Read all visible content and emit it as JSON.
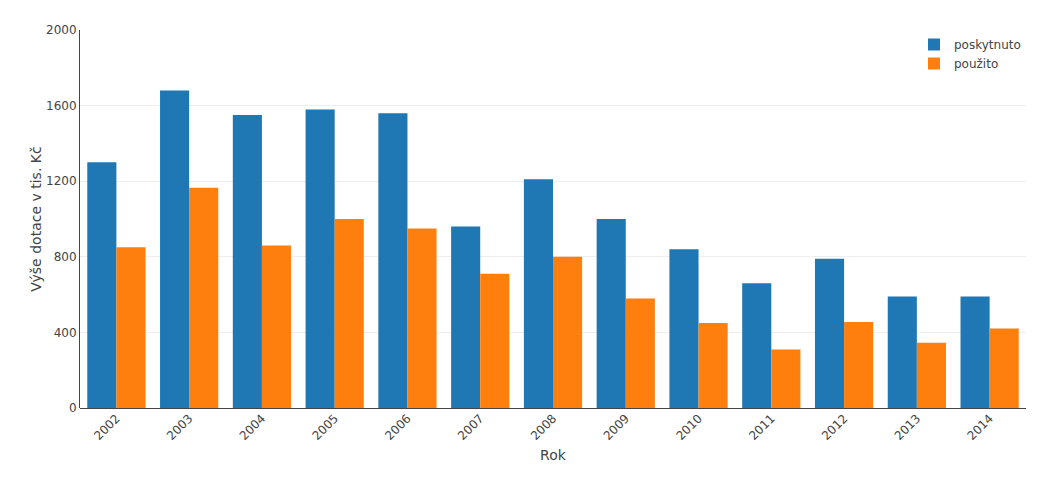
{
  "chart_data": {
    "type": "bar",
    "xlabel": "Rok",
    "ylabel": "Výše dotace v tis. Kč",
    "categories": [
      "2002",
      "2003",
      "2004",
      "2005",
      "2006",
      "2007",
      "2008",
      "2009",
      "2010",
      "2011",
      "2012",
      "2013",
      "2014"
    ],
    "series": [
      {
        "name": "poskytnuto",
        "values": [
          1300,
          1680,
          1550,
          1580,
          1560,
          960,
          1210,
          1000,
          840,
          660,
          790,
          590,
          590
        ]
      },
      {
        "name": "použito",
        "values": [
          850,
          1165,
          860,
          1000,
          950,
          710,
          800,
          580,
          450,
          310,
          455,
          345,
          420
        ]
      }
    ],
    "ylim": [
      0,
      2000
    ],
    "yticks": [
      0,
      400,
      800,
      1200,
      1600,
      2000
    ],
    "grid": true,
    "legend": "upper right"
  }
}
